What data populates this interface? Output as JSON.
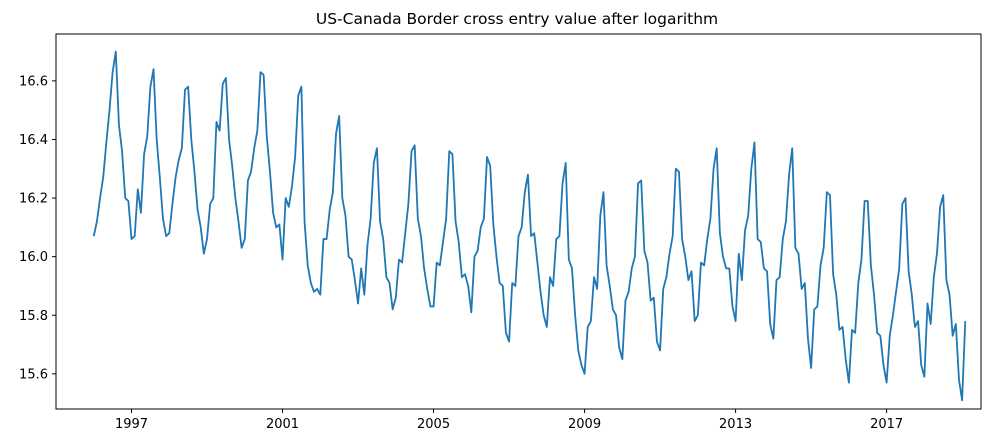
{
  "chart_data": {
    "type": "line",
    "title": "US-Canada Border cross entry value after logarithm",
    "xlabel": "",
    "ylabel": "",
    "x_start": "1996-01",
    "x_frequency": "monthly",
    "xlim": [
      "1995-01",
      "2019-07"
    ],
    "ylim": [
      15.48,
      16.76
    ],
    "xticks": [
      {
        "label": "1997",
        "value": "1997-01"
      },
      {
        "label": "2001",
        "value": "2001-01"
      },
      {
        "label": "2005",
        "value": "2005-01"
      },
      {
        "label": "2009",
        "value": "2009-01"
      },
      {
        "label": "2013",
        "value": "2013-01"
      },
      {
        "label": "2017",
        "value": "2017-01"
      }
    ],
    "yticks": [
      15.6,
      15.8,
      16.0,
      16.2,
      16.4,
      16.6
    ],
    "ytick_labels": [
      "15.6",
      "15.8",
      "16.0",
      "16.2",
      "16.4",
      "16.6"
    ],
    "grid": false,
    "legend": false,
    "series": [
      {
        "color": "#1f77b4",
        "values": [
          16.07,
          16.12,
          16.2,
          16.27,
          16.39,
          16.5,
          16.63,
          16.7,
          16.45,
          16.36,
          16.2,
          16.19,
          16.06,
          16.07,
          16.23,
          16.15,
          16.35,
          16.41,
          16.58,
          16.64,
          16.4,
          16.27,
          16.13,
          16.07,
          16.08,
          16.18,
          16.27,
          16.33,
          16.37,
          16.57,
          16.58,
          16.4,
          16.29,
          16.16,
          16.1,
          16.01,
          16.06,
          16.18,
          16.2,
          16.46,
          16.43,
          16.59,
          16.61,
          16.4,
          16.31,
          16.2,
          16.12,
          16.03,
          16.06,
          16.26,
          16.29,
          16.37,
          16.43,
          16.63,
          16.62,
          16.41,
          16.29,
          16.15,
          16.1,
          16.11,
          15.99,
          16.2,
          16.17,
          16.24,
          16.34,
          16.55,
          16.58,
          16.12,
          15.97,
          15.91,
          15.88,
          15.89,
          15.87,
          16.06,
          16.06,
          16.16,
          16.22,
          16.42,
          16.48,
          16.2,
          16.14,
          16.0,
          15.99,
          15.92,
          15.84,
          15.96,
          15.87,
          16.04,
          16.13,
          16.32,
          16.37,
          16.12,
          16.06,
          15.93,
          15.91,
          15.82,
          15.86,
          15.99,
          15.98,
          16.08,
          16.18,
          16.36,
          16.38,
          16.13,
          16.07,
          15.96,
          15.89,
          15.83,
          15.83,
          15.98,
          15.97,
          16.05,
          16.13,
          16.36,
          16.35,
          16.12,
          16.05,
          15.93,
          15.94,
          15.9,
          15.81,
          16.0,
          16.02,
          16.1,
          16.13,
          16.34,
          16.31,
          16.11,
          16.0,
          15.91,
          15.9,
          15.74,
          15.71,
          15.91,
          15.9,
          16.07,
          16.1,
          16.22,
          16.28,
          16.07,
          16.08,
          15.98,
          15.88,
          15.8,
          15.76,
          15.93,
          15.9,
          16.06,
          16.07,
          16.25,
          16.32,
          15.99,
          15.96,
          15.8,
          15.68,
          15.63,
          15.6,
          15.76,
          15.78,
          15.93,
          15.89,
          16.14,
          16.22,
          15.97,
          15.9,
          15.82,
          15.8,
          15.69,
          15.65,
          15.85,
          15.88,
          15.96,
          16.0,
          16.25,
          16.26,
          16.02,
          15.98,
          15.85,
          15.86,
          15.71,
          15.68,
          15.89,
          15.93,
          16.01,
          16.07,
          16.3,
          16.29,
          16.06,
          16.0,
          15.92,
          15.95,
          15.78,
          15.8,
          15.98,
          15.97,
          16.06,
          16.13,
          16.3,
          16.37,
          16.08,
          16.0,
          15.96,
          15.96,
          15.83,
          15.78,
          16.01,
          15.92,
          16.09,
          16.14,
          16.3,
          16.39,
          16.06,
          16.05,
          15.96,
          15.95,
          15.77,
          15.72,
          15.92,
          15.93,
          16.06,
          16.12,
          16.28,
          16.37,
          16.03,
          16.01,
          15.89,
          15.91,
          15.72,
          15.62,
          15.82,
          15.83,
          15.97,
          16.03,
          16.22,
          16.21,
          15.94,
          15.87,
          15.75,
          15.76,
          15.65,
          15.57,
          15.75,
          15.74,
          15.91,
          15.99,
          16.19,
          16.19,
          15.97,
          15.87,
          15.74,
          15.73,
          15.63,
          15.57,
          15.73,
          15.8,
          15.88,
          15.96,
          16.18,
          16.2,
          15.95,
          15.87,
          15.76,
          15.78,
          15.63,
          15.59,
          15.84,
          15.77,
          15.93,
          16.01,
          16.17,
          16.21,
          15.92,
          15.87,
          15.73,
          15.77,
          15.58,
          15.51,
          15.78
        ]
      }
    ]
  }
}
